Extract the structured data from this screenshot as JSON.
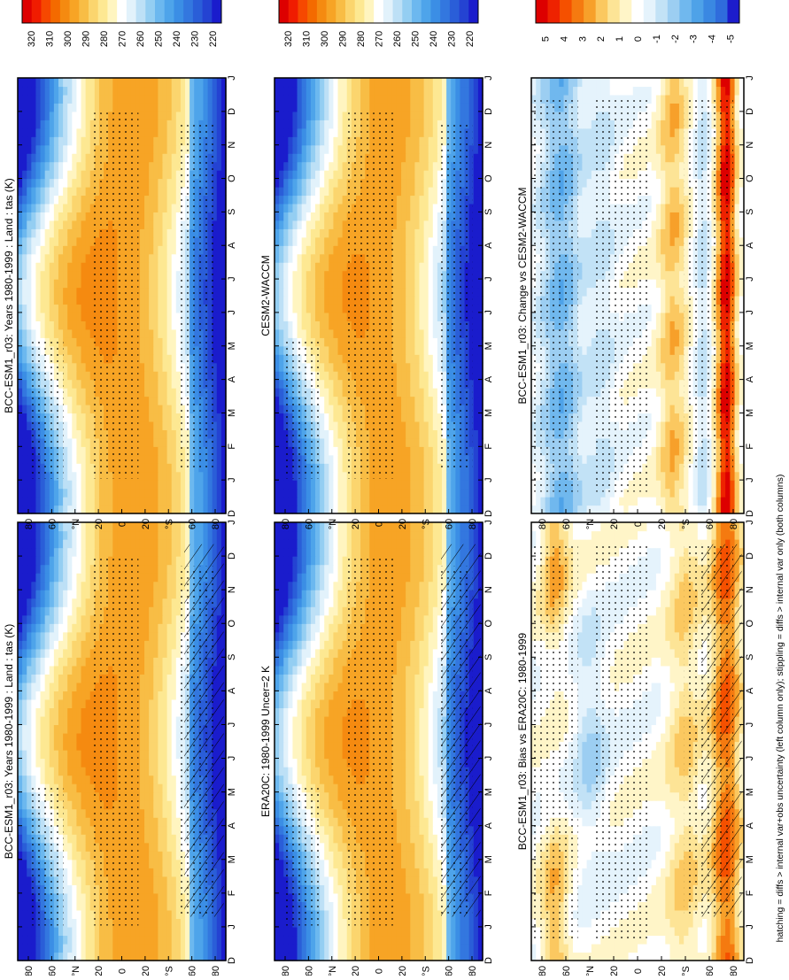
{
  "footer_note": "hatching = diffs > internal var+obs uncertainty (left column only); stippling = diffs > internal var only (both columns)",
  "colors": {
    "abs_scale": [
      "#dd0000",
      "#f01c00",
      "#f64800",
      "#f46a00",
      "#f58a10",
      "#f7a425",
      "#f8bd45",
      "#fbd56e",
      "#fde892",
      "#fff5c0",
      "#ffffff",
      "#e2f2fb",
      "#bde0f6",
      "#94cef2",
      "#6cb8ef",
      "#4ea4ea",
      "#3b8ee5",
      "#3377df",
      "#2a5ed8",
      "#2443d2",
      "#1a1ccc"
    ],
    "diff_scale": [
      "#dd0000",
      "#ee2200",
      "#f55000",
      "#f57a10",
      "#f7a02a",
      "#fbc860",
      "#fde496",
      "#fff5c8",
      "#ffffff",
      "#e5f3fc",
      "#c2e2f6",
      "#9ccef2",
      "#70b8ee",
      "#4ea2e8",
      "#3a88e2",
      "#2f6cdc",
      "#1c1ccc"
    ]
  },
  "chart_data": [
    {
      "type": "heatmap",
      "panel": "left-top",
      "title": "BCC-ESM1_r03: Years 1980-1999 : Land : tas (K)",
      "x_categories": [
        "D",
        "J",
        "F",
        "M",
        "A",
        "M",
        "J",
        "J",
        "A",
        "S",
        "O",
        "N",
        "D",
        "J"
      ],
      "y_ticks": [
        "80",
        "60",
        "°N",
        "20",
        "0",
        "20",
        "°S",
        "60",
        "80"
      ],
      "colorbar_labels": [
        "320",
        "310",
        "300",
        "290",
        "280",
        "270",
        "260",
        "250",
        "240",
        "230",
        "220"
      ],
      "colorbar_range": [
        215,
        325
      ],
      "stippling": true,
      "hatching": true,
      "variant": "model"
    },
    {
      "type": "heatmap",
      "panel": "right-top",
      "title": "BCC-ESM1_r03: Years 1980-1999 : Land : tas (K)",
      "x_categories": [
        "D",
        "J",
        "F",
        "M",
        "A",
        "M",
        "J",
        "J",
        "A",
        "S",
        "O",
        "N",
        "D",
        "J"
      ],
      "y_ticks": [
        "80",
        "60",
        "°N",
        "20",
        "0",
        "20",
        "°S",
        "60",
        "80"
      ],
      "colorbar_labels": [
        "320",
        "310",
        "300",
        "290",
        "280",
        "270",
        "260",
        "250",
        "240",
        "230",
        "220"
      ],
      "colorbar_range": [
        215,
        325
      ],
      "stippling": true,
      "hatching": false,
      "variant": "model"
    },
    {
      "type": "heatmap",
      "panel": "left-middle",
      "title": "ERA20C: 1980-1999 Uncer=2 K",
      "x_categories": [
        "D",
        "J",
        "F",
        "M",
        "A",
        "M",
        "J",
        "J",
        "A",
        "S",
        "O",
        "N",
        "D",
        "J"
      ],
      "y_ticks": [
        "80",
        "60",
        "°N",
        "20",
        "0",
        "20",
        "°S",
        "60",
        "80"
      ],
      "colorbar_labels": [
        "320",
        "310",
        "300",
        "290",
        "280",
        "270",
        "260",
        "250",
        "240",
        "230",
        "220"
      ],
      "colorbar_range": [
        215,
        325
      ],
      "stippling": true,
      "hatching": true,
      "variant": "obs"
    },
    {
      "type": "heatmap",
      "panel": "right-middle",
      "title": "CESM2-WACCM",
      "x_categories": [
        "D",
        "J",
        "F",
        "M",
        "A",
        "M",
        "J",
        "J",
        "A",
        "S",
        "O",
        "N",
        "D",
        "J"
      ],
      "y_ticks": [
        "80",
        "60",
        "°N",
        "20",
        "0",
        "20",
        "°S",
        "60",
        "80"
      ],
      "colorbar_labels": [
        "320",
        "310",
        "300",
        "290",
        "280",
        "270",
        "260",
        "250",
        "240",
        "230",
        "220"
      ],
      "colorbar_range": [
        215,
        325
      ],
      "stippling": true,
      "hatching": false,
      "variant": "obs"
    },
    {
      "type": "heatmap",
      "panel": "left-bottom",
      "title": "BCC-ESM1_r03: Bias vs ERA20C: 1980-1999",
      "x_categories": [
        "D",
        "J",
        "F",
        "M",
        "A",
        "M",
        "J",
        "J",
        "A",
        "S",
        "O",
        "N",
        "D",
        "J"
      ],
      "y_ticks": [
        "80",
        "60",
        "°N",
        "20",
        "0",
        "20",
        "°S",
        "60",
        "80"
      ],
      "colorbar_labels": [
        "5",
        "4",
        "3",
        "2",
        "1",
        "0",
        "-1",
        "-2",
        "-3",
        "-4",
        "-5"
      ],
      "colorbar_range": [
        -5.5,
        5.5
      ],
      "stippling": true,
      "hatching": true,
      "variant": "bias"
    },
    {
      "type": "heatmap",
      "panel": "right-bottom",
      "title": "BCC-ESM1_r03: Change vs CESM2-WACCM",
      "x_categories": [
        "D",
        "J",
        "F",
        "M",
        "A",
        "M",
        "J",
        "J",
        "A",
        "S",
        "O",
        "N",
        "D",
        "J"
      ],
      "y_ticks": [
        "80",
        "60",
        "°N",
        "20",
        "0",
        "20",
        "°S",
        "60",
        "80"
      ],
      "colorbar_labels": [
        "5",
        "4",
        "3",
        "2",
        "1",
        "0",
        "-1",
        "-2",
        "-3",
        "-4",
        "-5"
      ],
      "colorbar_range": [
        -5.5,
        5.5
      ],
      "stippling": true,
      "hatching": false,
      "variant": "change"
    }
  ]
}
